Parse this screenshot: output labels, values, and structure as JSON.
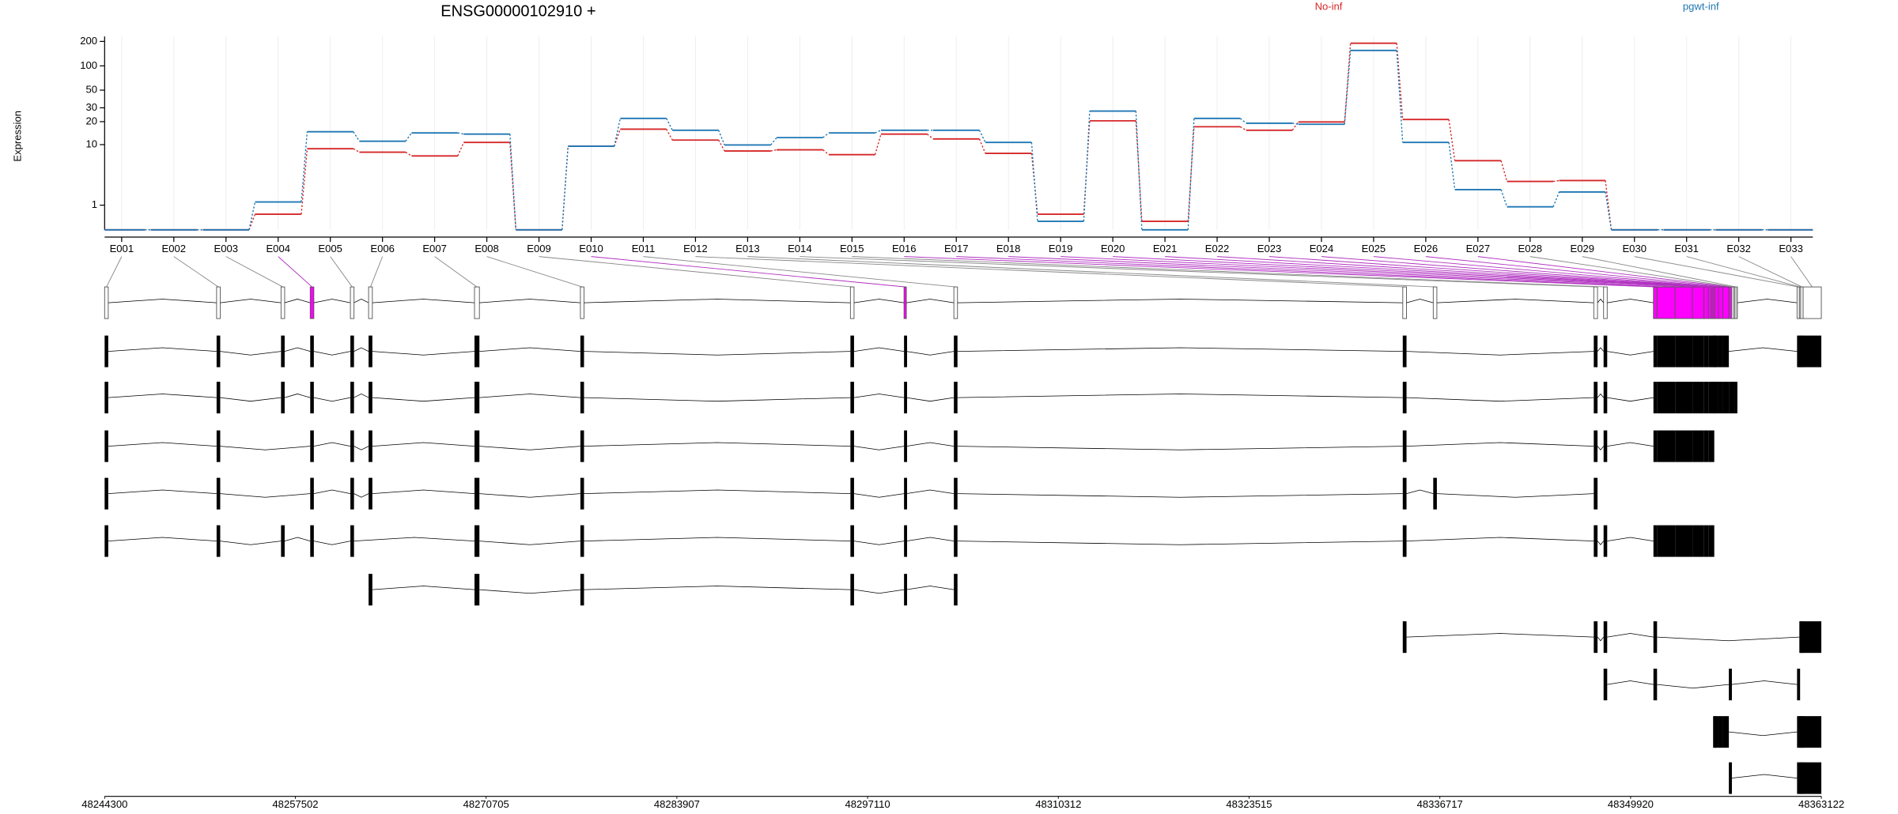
{
  "chart_data": {
    "type": "line",
    "title": "ENSG00000102910 +",
    "ylabel": "Expression",
    "yscale": "log1p",
    "grid": true,
    "categories": [
      "E001",
      "E002",
      "E003",
      "E004",
      "E005",
      "E006",
      "E007",
      "E008",
      "E009",
      "E010",
      "E011",
      "E012",
      "E013",
      "E014",
      "E015",
      "E016",
      "E017",
      "E018",
      "E019",
      "E020",
      "E021",
      "E022",
      "E023",
      "E024",
      "E025",
      "E026",
      "E027",
      "E028",
      "E029",
      "E030",
      "E031",
      "E032",
      "E033"
    ],
    "series": [
      {
        "name": "No-inf",
        "color": "#d62728",
        "values": [
          0,
          0,
          0,
          0.55,
          8.8,
          7.9,
          7.0,
          10.7,
          0,
          9.5,
          16,
          11.5,
          8.2,
          8.5,
          7.3,
          13.8,
          11.9,
          7.6,
          0.55,
          20.5,
          0.27,
          17.2,
          15.5,
          19.8,
          190,
          21.3,
          6.0,
          2.9,
          3.0,
          0,
          0,
          0,
          0
        ]
      },
      {
        "name": "pgwt-inf",
        "color": "#1f77b4",
        "values": [
          0,
          0,
          0,
          1.19,
          14.8,
          11.1,
          14.3,
          13.8,
          0,
          9.5,
          22,
          15.5,
          9.9,
          12.4,
          14.3,
          15.5,
          15.5,
          10.7,
          0.27,
          27.3,
          0,
          22,
          19.1,
          18.5,
          155,
          10.7,
          2.1,
          0.91,
          1.9,
          0,
          0,
          0,
          0
        ]
      }
    ],
    "ylim": [
      0,
      230
    ],
    "yticks": [
      1,
      10,
      20,
      30,
      50,
      100,
      200
    ],
    "exons": {
      "starts": [
        48244300,
        48252050,
        48256510,
        48258530,
        48261310,
        48262570,
        48269900,
        48277230,
        48295920,
        48299630,
        48303080,
        48334150,
        48336260,
        48347370,
        48348050,
        48351500,
        48351750,
        48353000,
        48354200,
        48355000,
        48355300,
        48355500,
        48355630,
        48355750,
        48356000,
        48356300,
        48356720,
        48356900,
        48357100,
        48361440,
        48361600,
        48361690,
        48361860
      ],
      "ends": [
        48244550,
        48252300,
        48256760,
        48258780,
        48261560,
        48262830,
        48270240,
        48277480,
        48296170,
        48299790,
        48303330,
        48334410,
        48336510,
        48347630,
        48348300,
        48351750,
        48353000,
        48354200,
        48355000,
        48355300,
        48355500,
        48355630,
        48355750,
        48356000,
        48356300,
        48356720,
        48356900,
        48357100,
        48357310,
        48361600,
        48361690,
        48361860,
        48363120
      ],
      "colors": [
        "#ffffff",
        "#ffffff",
        "#ffffff",
        "#ff00ff",
        "#ffffff",
        "#ffffff",
        "#ffffff",
        "#ffffff",
        "#ffffff",
        "#ff00ff",
        "#ffffff",
        "#ffffff",
        "#ffffff",
        "#ffffff",
        "#ffffff",
        "#ff00ff",
        "#ff00ff",
        "#ff00ff",
        "#ff00ff",
        "#ff00ff",
        "#ff00ff",
        "#ff00ff",
        "#ff00ff",
        "#ff00ff",
        "#ff00ff",
        "#ff00ff",
        "#ff00ff",
        "#cccccc",
        "#cccccc",
        "#ffffff",
        "#ffffff",
        "#ffffff",
        "#ffffff"
      ]
    },
    "transcripts": [
      [
        0,
        1,
        2,
        3,
        4,
        5,
        6,
        7,
        8,
        9,
        10,
        11,
        13,
        14,
        15,
        16,
        17,
        18,
        19,
        20,
        21,
        22,
        23,
        24,
        25,
        29,
        30,
        31,
        32
      ],
      [
        0,
        1,
        2,
        3,
        4,
        5,
        6,
        7,
        8,
        9,
        10,
        11,
        13,
        14,
        15,
        16,
        17,
        18,
        19,
        20,
        21,
        22,
        23,
        24,
        25,
        26,
        27,
        28
      ],
      [
        0,
        1,
        3,
        4,
        5,
        6,
        7,
        8,
        9,
        10,
        11,
        13,
        14,
        15,
        16,
        17,
        18,
        19,
        20,
        21
      ],
      [
        0,
        1,
        3,
        4,
        5,
        6,
        7,
        8,
        9,
        10,
        11,
        12,
        13
      ],
      [
        0,
        1,
        2,
        3,
        4,
        6,
        7,
        8,
        9,
        10,
        11,
        13,
        14,
        15,
        16,
        17,
        18,
        19,
        20,
        21
      ],
      [
        5,
        6,
        7,
        8,
        9,
        10
      ],
      [
        11,
        13,
        14,
        15,
        30,
        31,
        32
      ],
      [
        14,
        15,
        26,
        29
      ],
      [
        22,
        23,
        24,
        25,
        29,
        30,
        31,
        32
      ],
      [
        26,
        29,
        30,
        31,
        32
      ]
    ],
    "genome_xlim": [
      48244300,
      48363122
    ],
    "genome_xticks": [
      48244300,
      48257502,
      48270705,
      48283907,
      48297110,
      48310312,
      48323515,
      48336717,
      48349920,
      48363122
    ]
  }
}
